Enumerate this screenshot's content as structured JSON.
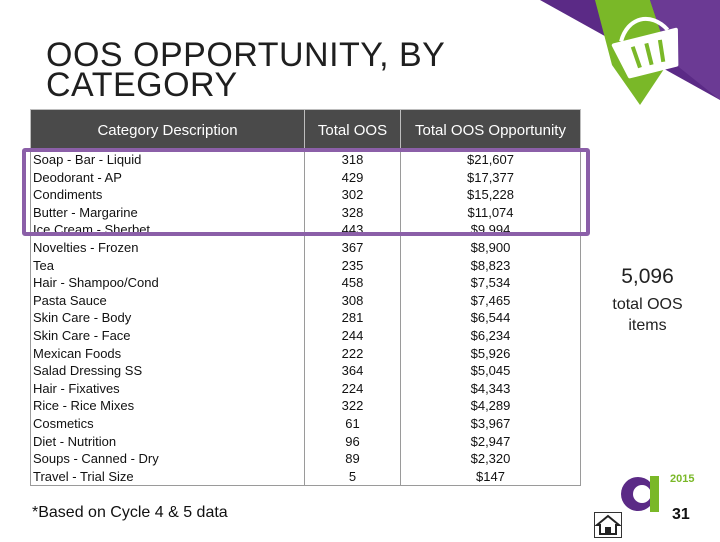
{
  "title": "OOS OPPORTUNITY, BY CATEGORY",
  "table": {
    "headers": [
      "Category Description",
      "Total OOS",
      "Total OOS Opportunity"
    ],
    "rows": [
      [
        "Soap - Bar - Liquid",
        "318",
        "$21,607"
      ],
      [
        "Deodorant - AP",
        "429",
        "$17,377"
      ],
      [
        "Condiments",
        "302",
        "$15,228"
      ],
      [
        "Butter - Margarine",
        "328",
        "$11,074"
      ],
      [
        "Ice Cream - Sherbet",
        "443",
        "$9,994"
      ],
      [
        "Novelties - Frozen",
        "367",
        "$8,900"
      ],
      [
        "Tea",
        "235",
        "$8,823"
      ],
      [
        "Hair - Shampoo/Cond",
        "458",
        "$7,534"
      ],
      [
        "Pasta Sauce",
        "308",
        "$7,465"
      ],
      [
        "Skin Care - Body",
        "281",
        "$6,544"
      ],
      [
        "Skin Care - Face",
        "244",
        "$6,234"
      ],
      [
        "Mexican Foods",
        "222",
        "$5,926"
      ],
      [
        "Salad Dressing SS",
        "364",
        "$5,045"
      ],
      [
        "Hair - Fixatives",
        "224",
        "$4,343"
      ],
      [
        "Rice - Rice Mixes",
        "322",
        "$4,289"
      ],
      [
        "Cosmetics",
        "61",
        "$3,967"
      ],
      [
        "Diet - Nutrition",
        "96",
        "$2,947"
      ],
      [
        "Soups - Canned - Dry",
        "89",
        "$2,320"
      ],
      [
        "Travel - Trial Size",
        "5",
        "$147"
      ]
    ]
  },
  "stat": {
    "value": "5,096",
    "label": "total OOS items"
  },
  "footnote": "*Based on Cycle 4 & 5 data",
  "logo_year": "2015",
  "page_number": "31",
  "colors": {
    "purple": "#5b2a86",
    "green": "#7ab828",
    "highlight": "#8b5fa8",
    "header_bg": "#4a4a4a"
  },
  "icons": [
    "shopping-basket-icon",
    "home-icon",
    "company-logo"
  ]
}
